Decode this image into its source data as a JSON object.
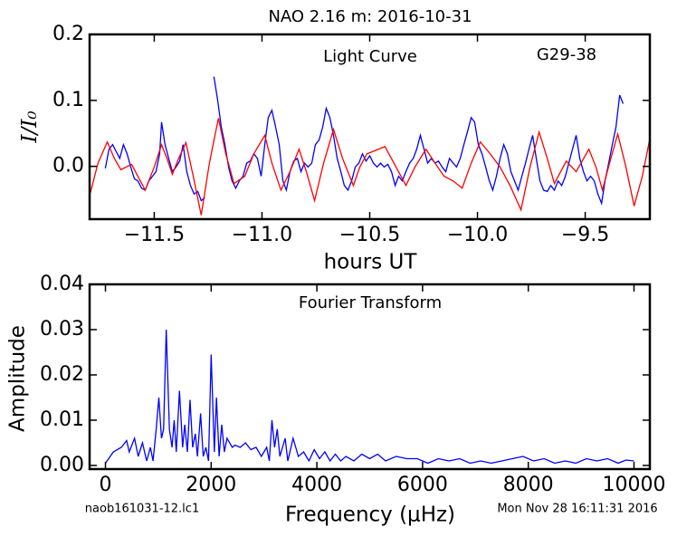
{
  "title": "NAO 2.16 m:  2016-10-31",
  "footer": {
    "left": "naob161031-12.lc1",
    "right": "Mon Nov 28 16:11:31 2016"
  },
  "chart_data": [
    {
      "type": "line",
      "annotations": [
        "Light Curve",
        "G29-38"
      ],
      "xlabel": "hours UT",
      "ylabel": "I/I₀",
      "xlim": [
        -11.8,
        -9.2
      ],
      "ylim": [
        -0.08,
        0.2
      ],
      "xticks": [
        {
          "value": -11.5,
          "label": "−11.5"
        },
        {
          "value": -11,
          "label": "−11.0"
        },
        {
          "value": -10.5,
          "label": "−10.5"
        },
        {
          "value": -10,
          "label": "−10.0"
        },
        {
          "value": -9.5,
          "label": "−9.5"
        }
      ],
      "yticks": [
        {
          "value": 0,
          "label": "0.0"
        },
        0.1,
        0.2
      ],
      "series": [
        {
          "color": "#0000ff",
          "x": [
            -11.727,
            -11.71,
            -11.693,
            -11.676,
            -11.66,
            -11.643,
            -11.626,
            -11.609,
            -11.592,
            -11.576,
            -11.559,
            -11.542,
            -11.525,
            -11.508,
            -11.492,
            -11.475,
            -11.466,
            -11.45,
            -11.433,
            -11.416,
            -11.399,
            -11.382,
            -11.366,
            -11.349,
            -11.332,
            -11.315,
            -11.298,
            -11.282,
            -11.265,
            -11.244,
            -11.223,
            -11.206,
            -11.189,
            -11.172,
            -11.155,
            -11.139,
            -11.122,
            -11.105,
            -11.088,
            -11.071,
            -11.055,
            -11.038,
            -11.021,
            -11.004,
            -10.987,
            -10.971,
            -10.954,
            -10.937,
            -10.92,
            -10.903,
            -10.887,
            -10.87,
            -10.853,
            -10.836,
            -10.819,
            -10.803,
            -10.786,
            -10.769,
            -10.752,
            -10.735,
            -10.718,
            -10.702,
            -10.685,
            -10.668,
            -10.651,
            -10.634,
            -10.618,
            -10.601,
            -10.584,
            -10.567,
            -10.55,
            -10.534,
            -10.517,
            -10.5,
            -10.483,
            -10.466,
            -10.45,
            -10.433,
            -10.416,
            -10.399,
            -10.382,
            -10.366,
            -10.349,
            -10.332,
            -10.315,
            -10.298,
            -10.282,
            -10.265,
            -10.248,
            -10.231,
            -10.214,
            -10.197,
            -10.181,
            -10.164,
            -10.147,
            -10.13,
            -10.113,
            -10.097,
            -10.08,
            -10.063,
            -10.046,
            -10.029,
            -10.013,
            -9.996,
            -9.979,
            -9.962,
            -9.945,
            -9.929,
            -9.912,
            -9.895,
            -9.878,
            -9.861,
            -9.845,
            -9.828,
            -9.811,
            -9.794,
            -9.777,
            -9.761,
            -9.744,
            -9.727,
            -9.71,
            -9.693,
            -9.676,
            -9.66,
            -9.643,
            -9.626,
            -9.609,
            -9.592,
            -9.576,
            -9.559,
            -9.542,
            -9.525,
            -9.508,
            -9.492,
            -9.475,
            -9.458,
            -9.441,
            -9.424,
            -9.408,
            -9.391,
            -9.374,
            -9.357,
            -9.34,
            -9.324
          ],
          "values": [
            -0.003,
            0.026,
            0.033,
            0.022,
            0.012,
            0.033,
            0.019,
            -0.001,
            -0.019,
            -0.022,
            -0.033,
            -0.036,
            -0.022,
            -0.015,
            -0.008,
            0.019,
            0.067,
            0.033,
            0.012,
            -0.008,
            -0.001,
            0.008,
            0.033,
            -0.008,
            -0.029,
            -0.042,
            -0.038,
            -0.052,
            -0.047,
            null,
            0.136,
            0.101,
            0.06,
            0.033,
            -0.001,
            -0.022,
            -0.033,
            -0.022,
            -0.015,
            0.005,
            0.008,
            0.019,
            0.012,
            -0.015,
            0.033,
            0.074,
            0.085,
            0.06,
            0.033,
            -0.022,
            -0.036,
            -0.008,
            0.008,
            0.012,
            -0.008,
            0.005,
            -0.001,
            0.005,
            0.033,
            0.04,
            0.06,
            0.088,
            0.074,
            0.047,
            0.012,
            -0.008,
            -0.029,
            -0.036,
            -0.022,
            -0.001,
            0.005,
            0.019,
            0.008,
            0.016,
            0.005,
            -0.001,
            0.005,
            -0.001,
            0.003,
            -0.008,
            -0.029,
            -0.015,
            -0.022,
            -0.008,
            0.005,
            0.012,
            0.026,
            0.047,
            0.026,
            0.005,
            0.012,
            0.005,
            0.008,
            -0.001,
            -0.008,
            0.012,
            0.005,
            -0.001,
            0.012,
            0.033,
            0.053,
            0.074,
            0.067,
            0.033,
            0.019,
            -0.001,
            -0.022,
            -0.036,
            -0.015,
            0.012,
            0.033,
            0.019,
            -0.008,
            -0.022,
            -0.036,
            -0.015,
            0.005,
            0.026,
            0.047,
            0.012,
            -0.022,
            -0.036,
            -0.038,
            -0.029,
            -0.036,
            -0.022,
            -0.029,
            -0.015,
            0.005,
            0.026,
            0.047,
            0.012,
            -0.008,
            -0.022,
            -0.015,
            -0.022,
            -0.042,
            -0.056,
            -0.022,
            0.005,
            0.033,
            0.06,
            0.108,
            0.095
          ]
        },
        {
          "color": "#ff0000",
          "x": [
            -11.798,
            -11.761,
            -11.718,
            -11.685,
            -11.655,
            -11.605,
            -11.576,
            -11.542,
            -11.5,
            -11.466,
            -11.441,
            -11.416,
            -11.387,
            -11.353,
            -11.319,
            -11.282,
            -11.244,
            -11.202,
            -11.168,
            -11.13,
            -11.08,
            -11.038,
            -10.987,
            -10.954,
            -10.912,
            -10.87,
            -10.828,
            -10.794,
            -10.756,
            -10.714,
            -10.668,
            -10.626,
            -10.576,
            -10.546,
            -10.513,
            -10.429,
            -10.378,
            -10.332,
            -10.29,
            -10.239,
            -10.197,
            -10.155,
            -10.113,
            -10.071,
            -10.029,
            -9.987,
            -9.941,
            -9.895,
            -9.849,
            -9.798,
            -9.756,
            -9.714,
            -9.676,
            -9.643,
            -9.588,
            -9.542,
            -9.483,
            -9.45,
            -9.42,
            -9.387,
            -9.349,
            -9.311,
            -9.273,
            -9.235,
            -9.197
          ],
          "values": [
            -0.042,
            0.005,
            0.037,
            0.012,
            -0.005,
            0.003,
            -0.015,
            -0.036,
            -0.001,
            0.033,
            0.012,
            -0.012,
            0.012,
            0.036,
            -0.015,
            -0.074,
            0.005,
            0.073,
            0.019,
            -0.026,
            -0.015,
            0.019,
            0.047,
            0.005,
            -0.036,
            -0.008,
            0.026,
            -0.008,
            -0.052,
            0.005,
            0.056,
            0.012,
            -0.029,
            -0.001,
            0.019,
            0.03,
            -0.001,
            -0.029,
            -0.001,
            0.026,
            0.005,
            -0.015,
            -0.022,
            -0.033,
            0.005,
            0.037,
            0.019,
            -0.001,
            -0.029,
            -0.066,
            -0.001,
            0.052,
            0.012,
            -0.026,
            0.008,
            -0.008,
            0.026,
            -0.001,
            -0.036,
            0.005,
            0.049,
            -0.001,
            -0.06,
            -0.015,
            0.047
          ]
        }
      ]
    },
    {
      "type": "line",
      "annotations": [
        "Fourier Transform"
      ],
      "xlabel": "Frequency (μHz)",
      "ylabel": "Amplitude",
      "xlim": [
        -300,
        10300
      ],
      "ylim": [
        -0.0008,
        0.04
      ],
      "xticks": [
        0,
        2000,
        4000,
        6000,
        8000,
        10000
      ],
      "yticks": [
        {
          "value": 0,
          "label": "0.00"
        },
        0.01,
        0.02,
        0.03,
        0.04
      ],
      "series": [
        {
          "color": "#0000ff",
          "x": [
            0,
            150,
            300,
            400,
            450,
            550,
            620,
            700,
            780,
            850,
            900,
            960,
            1010,
            1060,
            1100,
            1150,
            1210,
            1260,
            1300,
            1340,
            1400,
            1460,
            1500,
            1550,
            1600,
            1650,
            1700,
            1740,
            1800,
            1850,
            1900,
            1950,
            2000,
            2060,
            2100,
            2150,
            2200,
            2250,
            2300,
            2400,
            2450,
            2550,
            2650,
            2750,
            2850,
            2950,
            3050,
            3100,
            3150,
            3200,
            3250,
            3300,
            3400,
            3450,
            3550,
            3650,
            3750,
            3850,
            3950,
            4050,
            4150,
            4250,
            4350,
            4450,
            4550,
            4700,
            4850,
            5000,
            5150,
            5300,
            5500,
            5700,
            5900,
            6100,
            6300,
            6500,
            6700,
            6900,
            7100,
            7300,
            7500,
            7700,
            7900,
            8100,
            8300,
            8500,
            8700,
            8900,
            9100,
            9300,
            9500,
            9700,
            9850,
            10000
          ],
          "values": [
            0.0005,
            0.003,
            0.004,
            0.0055,
            0.003,
            0.006,
            0.002,
            0.005,
            0.001,
            0.004,
            0.001,
            0.008,
            0.015,
            0.006,
            0.008,
            0.03,
            0.008,
            0.004,
            0.01,
            0.003,
            0.0165,
            0.004,
            0.009,
            0.003,
            0.0145,
            0.004,
            0.007,
            0.002,
            0.0115,
            0.002,
            0.004,
            0.001,
            0.0245,
            0.003,
            0.015,
            0.002,
            0.009,
            0.003,
            0.006,
            0.004,
            0.0045,
            0.004,
            0.005,
            0.0035,
            0.004,
            0.002,
            0.004,
            0.001,
            0.01,
            0.004,
            0.008,
            0.002,
            0.006,
            0.001,
            0.006,
            0.002,
            0.003,
            0.001,
            0.0035,
            0.0015,
            0.003,
            0.001,
            0.0025,
            0.001,
            0.002,
            0.001,
            0.0025,
            0.0015,
            0.0025,
            0.001,
            0.002,
            0.0015,
            0.0015,
            0.0005,
            0.0015,
            0.001,
            0.0015,
            0.0005,
            0.001,
            0.0005,
            0.001,
            0.0015,
            0.002,
            0.001,
            0.0015,
            0.0005,
            0.001,
            0.0005,
            0.0015,
            0.001,
            0.0015,
            0.0005,
            0.0012,
            0.001
          ]
        }
      ]
    }
  ]
}
